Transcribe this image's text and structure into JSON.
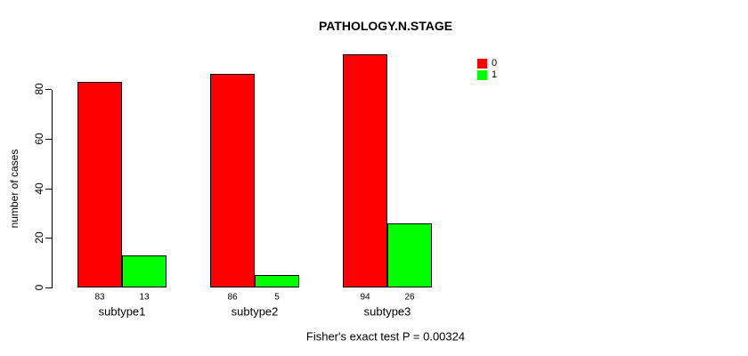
{
  "title": "PATHOLOGY.N.STAGE",
  "y_axis": {
    "label": "number of cases",
    "ticks": [
      "0",
      "20",
      "40",
      "60",
      "80"
    ]
  },
  "legend": {
    "items": [
      {
        "label": "0",
        "color": "#ff0000"
      },
      {
        "label": "1",
        "color": "#00ff00"
      }
    ]
  },
  "footer": "Fisher's exact test P = 0.00324",
  "chart_data": {
    "type": "bar",
    "title": "PATHOLOGY.N.STAGE",
    "xlabel": "",
    "ylabel": "number of cases",
    "categories": [
      "subtype1",
      "subtype2",
      "subtype3"
    ],
    "series": [
      {
        "name": "0",
        "color": "#ff0000",
        "values": [
          83,
          86,
          94
        ]
      },
      {
        "name": "1",
        "color": "#00ff00",
        "values": [
          13,
          5,
          26
        ]
      }
    ],
    "bar_value_labels": [
      [
        83,
        13
      ],
      [
        86,
        5
      ],
      [
        94,
        26
      ]
    ],
    "yticks": [
      0,
      20,
      40,
      60,
      80
    ],
    "ylim": [
      0,
      96
    ],
    "grid": false,
    "legend_position": "top-right",
    "annotation": "Fisher's exact test P = 0.00324"
  }
}
